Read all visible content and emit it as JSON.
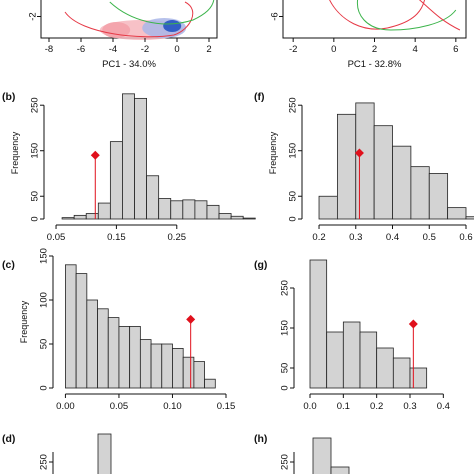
{
  "chart_data": [
    {
      "panel": "pca-left",
      "type": "scatter",
      "xlabel": "PC1 - 34.0%",
      "x_ticks": [
        -8,
        -6,
        -4,
        -2,
        0,
        2
      ],
      "y_ticks": [
        -2
      ],
      "xlim": [
        -8.5,
        2.5
      ],
      "ylim": [
        -3.0,
        -1.0
      ],
      "colors": {
        "red": "#e63946",
        "blue": "#2b59c3",
        "green": "#3cb44b"
      }
    },
    {
      "panel": "pca-right",
      "type": "scatter",
      "xlabel": "PC1 - 32.8%",
      "x_ticks": [
        -2,
        0,
        2,
        4,
        6
      ],
      "y_ticks": [
        -6
      ],
      "xlim": [
        -2.5,
        6.5
      ],
      "ylim": [
        -7.0,
        -5.0
      ],
      "colors": {
        "red": "#e63946",
        "green": "#3cb44b"
      }
    },
    {
      "panel": "(b)",
      "type": "bar",
      "ylabel": "Frequency",
      "xlim": [
        0.04,
        0.31
      ],
      "ylim": [
        0,
        290
      ],
      "x_ticks": [
        0.05,
        0.15,
        0.25
      ],
      "x_tick_labels": [
        "0.05",
        "0.15",
        "0.25"
      ],
      "y_ticks": [
        0,
        50,
        150,
        250
      ],
      "bin_start": 0.06,
      "bin_width": 0.02,
      "values": [
        3,
        8,
        12,
        35,
        170,
        275,
        265,
        95,
        45,
        40,
        42,
        40,
        30,
        12,
        6,
        2
      ],
      "observed": {
        "x": 0.115,
        "y": 140
      },
      "tail_end": 0.38
    },
    {
      "panel": "(f)",
      "type": "bar",
      "ylabel": "Frequency",
      "xlim": [
        0.17,
        0.6
      ],
      "ylim": [
        0,
        290
      ],
      "x_ticks": [
        0.2,
        0.3,
        0.4,
        0.5,
        0.6
      ],
      "x_tick_labels": [
        "0.2",
        "0.3",
        "0.4",
        "0.5",
        "0.6"
      ],
      "y_ticks": [
        0,
        50,
        150,
        250
      ],
      "bin_start": 0.2,
      "bin_width": 0.05,
      "values": [
        50,
        230,
        255,
        205,
        160,
        115,
        100,
        25,
        5
      ],
      "observed": {
        "x": 0.31,
        "y": 145
      },
      "tail_end": 0.6
    },
    {
      "panel": "(c)",
      "type": "bar",
      "ylabel": "Frequency",
      "xlim": [
        -0.006,
        0.15
      ],
      "ylim": [
        0,
        150
      ],
      "x_ticks": [
        0.0,
        0.05,
        0.1,
        0.15
      ],
      "x_tick_labels": [
        "0.00",
        "0.05",
        "0.10",
        "0.15"
      ],
      "y_ticks": [
        0,
        50,
        100,
        150
      ],
      "bin_start": 0.0,
      "bin_width": 0.01,
      "values": [
        140,
        130,
        100,
        90,
        80,
        70,
        70,
        55,
        50,
        50,
        45,
        35,
        30,
        10
      ],
      "observed": {
        "x": 0.117,
        "y": 78
      },
      "tail_end": 0.14
    },
    {
      "panel": "(g)",
      "type": "bar",
      "ylabel": "",
      "xlim": [
        -0.03,
        0.45
      ],
      "ylim": [
        0,
        330
      ],
      "x_ticks": [
        0.0,
        0.1,
        0.2,
        0.3,
        0.4
      ],
      "x_tick_labels": [
        "0.0",
        "0.1",
        "0.2",
        "0.3",
        "0.4"
      ],
      "y_ticks": [
        0,
        50,
        150,
        250
      ],
      "bin_start": 0.0,
      "bin_width": 0.05,
      "values": [
        320,
        140,
        165,
        140,
        100,
        75,
        50
      ],
      "observed": {
        "x": 0.31,
        "y": 160
      },
      "tail_end": 0.35
    },
    {
      "panel": "(d)",
      "type": "bar",
      "ylabel": "",
      "y_ticks": [
        250
      ],
      "values_visible": [
        290
      ]
    },
    {
      "panel": "(h)",
      "type": "bar",
      "ylabel": "",
      "y_ticks": [
        250
      ],
      "values_visible": [
        290,
        190
      ]
    }
  ]
}
